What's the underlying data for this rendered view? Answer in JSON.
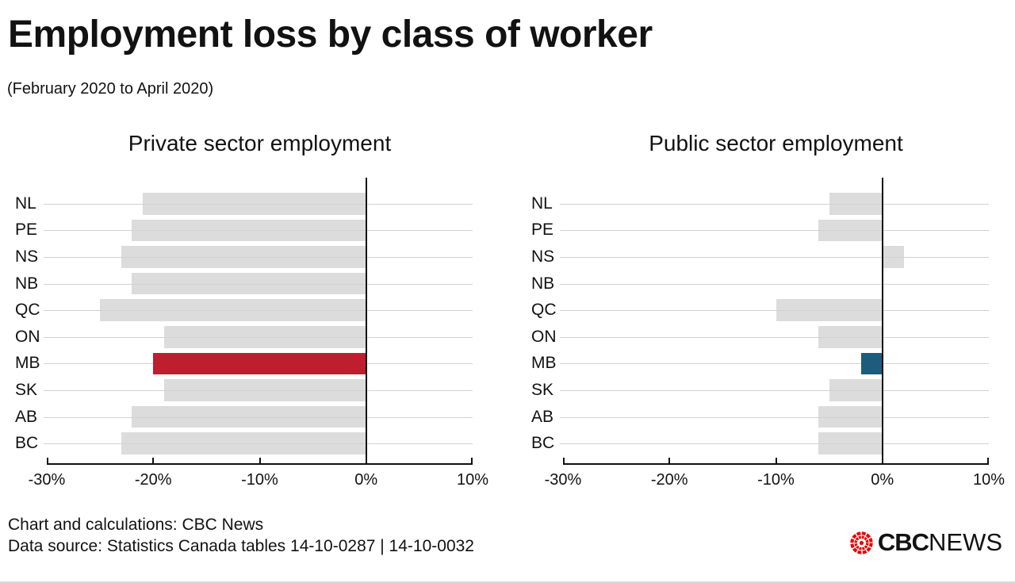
{
  "header": {
    "title": "Employment loss by class of worker",
    "subtitle": "(February 2020 to April 2020)"
  },
  "chart_data": [
    {
      "type": "bar",
      "orientation": "horizontal",
      "title": "Private sector employment",
      "categories": [
        "NL",
        "PE",
        "NS",
        "NB",
        "QC",
        "ON",
        "MB",
        "SK",
        "AB",
        "BC"
      ],
      "values": [
        -21,
        -22,
        -23,
        -22,
        -25,
        -19,
        -20,
        -19,
        -22,
        -23
      ],
      "unit": "%",
      "xlim": [
        -30,
        10
      ],
      "tick_values": [
        -30,
        -20,
        -10,
        0,
        10
      ],
      "tick_labels": [
        "-30%",
        "-20%",
        "-10%",
        "0%",
        "10%"
      ],
      "highlight_category": "MB",
      "bar_color": "#dcdcdc",
      "highlight_color": "#be1e2d",
      "grid": true,
      "legend": "none"
    },
    {
      "type": "bar",
      "orientation": "horizontal",
      "title": "Public sector employment",
      "categories": [
        "NL",
        "PE",
        "NS",
        "NB",
        "QC",
        "ON",
        "MB",
        "SK",
        "AB",
        "BC"
      ],
      "values": [
        -5,
        -6,
        2,
        0,
        -10,
        -6,
        -2,
        -5,
        -6,
        -6
      ],
      "unit": "%",
      "xlim": [
        -30,
        10
      ],
      "tick_values": [
        -30,
        -20,
        -10,
        0,
        10
      ],
      "tick_labels": [
        "-30%",
        "-20%",
        "-10%",
        "0%",
        "10%"
      ],
      "highlight_category": "MB",
      "bar_color": "#dcdcdc",
      "highlight_color": "#1d5c7d",
      "grid": true,
      "legend": "none"
    }
  ],
  "footer": {
    "credit_line1": "Chart and calculations: CBC News",
    "credit_line2": "Data source: Statistics Canada tables 14-10-0287 | 14-10-0032",
    "logo": {
      "bold": "CBC",
      "light": "NEWS",
      "gem_color": "#e60505"
    }
  },
  "colors": {
    "background": "#ffffff",
    "text": "#121212",
    "bar_default": "#dcdcdc",
    "bar_private_highlight": "#be1e2d",
    "bar_public_highlight": "#1d5c7d",
    "gridline": "#d2d2d2",
    "axis": "#111111"
  }
}
